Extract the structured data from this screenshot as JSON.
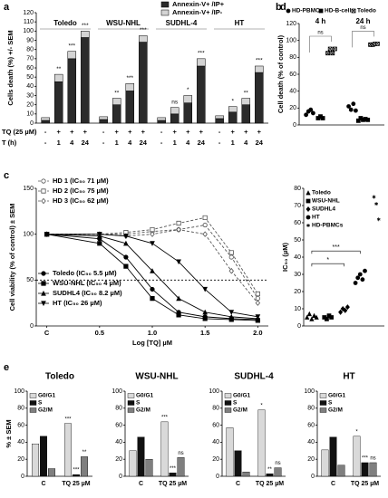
{
  "chart_data": [
    {
      "type": "stacked-bar",
      "panel_label": "a",
      "ylabel": "Cells death (%) +/- SEM",
      "ylim": [
        0,
        120
      ],
      "yticks": [
        0,
        10,
        20,
        30,
        40,
        50,
        60,
        70,
        80,
        90,
        100,
        110,
        120
      ],
      "groups": [
        "Toledo",
        "WSU-NHL",
        "SUDHL-4",
        "HT"
      ],
      "tq_label": "TQ (25 µM)",
      "t_label": "T (h)",
      "tq": [
        "-",
        "+",
        "+",
        "+",
        "-",
        "+",
        "+",
        "+",
        "-",
        "+",
        "+",
        "+",
        "-",
        "+",
        "+",
        "+"
      ],
      "t": [
        "-",
        "1",
        "4",
        "24",
        "-",
        "1",
        "4",
        "24",
        "-",
        "1",
        "4",
        "24",
        "-",
        "1",
        "4",
        "24"
      ],
      "series": [
        {
          "name": "Annexin-V+ /IP+",
          "color": "#2b2b2b",
          "values": [
            3,
            45,
            70,
            93,
            4,
            20,
            35,
            88,
            3,
            10,
            22,
            62,
            5,
            12,
            20,
            55
          ]
        },
        {
          "name": "Annexin-V+ /IP-",
          "color": "#d4d4d4",
          "values": [
            3,
            8,
            8,
            7,
            3,
            7,
            8,
            7,
            3,
            7,
            8,
            8,
            3,
            6,
            7,
            7
          ]
        }
      ],
      "significance": [
        null,
        "**",
        "***",
        "***",
        null,
        "**",
        "***",
        "***",
        null,
        "ns",
        "*",
        "***",
        null,
        "*",
        "**",
        "***"
      ]
    },
    {
      "type": "strip",
      "panel_label": "b",
      "ylabel": "Cell death (% of control)",
      "ylim": [
        0,
        120
      ],
      "yticks": [
        0,
        20,
        40,
        60,
        80,
        100,
        120
      ],
      "categories": [
        "4 h",
        "24 h"
      ],
      "significance": [
        "ns",
        "ns"
      ],
      "series": [
        {
          "name": "HD-PBMCs",
          "marker": "circle",
          "filled": true,
          "color": "#000000",
          "values": [
            [
              12,
              16,
              18,
              14
            ],
            [
              22,
              18,
              25,
              17
            ]
          ]
        },
        {
          "name": "HD-B-cells",
          "marker": "square",
          "filled": true,
          "color": "#000000",
          "values": [
            [
              8,
              10,
              8
            ],
            [
              5,
              8,
              6,
              7,
              6
            ]
          ]
        },
        {
          "name": "Toledo",
          "marker": "square-x",
          "filled": false,
          "color": "#000000",
          "values": [
            [
              85,
              90,
              85,
              90
            ],
            [
              95,
              95,
              96,
              96
            ]
          ]
        }
      ]
    },
    {
      "type": "line",
      "panel_label": "c",
      "ylabel": "Cell viability (% of control) ± SEM",
      "xlabel": "Log [TQ] µM",
      "ylim": [
        0,
        150
      ],
      "yticks": [
        0,
        50,
        100,
        150
      ],
      "hline": 50,
      "xlim": [
        -0.1,
        2.1
      ],
      "xticks": [
        {
          "value": 0,
          "label": "C"
        },
        0.5,
        {
          "value": 1,
          "label": "1.0"
        },
        1.5,
        {
          "value": 2,
          "label": "2.0"
        }
      ],
      "x": [
        0,
        0.5,
        0.75,
        1,
        1.25,
        1.5,
        1.75,
        2
      ],
      "series": [
        {
          "name": "HD 1 (IC₅₀ 71 µM)",
          "marker": "circle",
          "filled": false,
          "line_style": "dashed",
          "color": "#555555",
          "values": [
            100,
            100,
            100,
            103,
            105,
            110,
            75,
            30
          ]
        },
        {
          "name": "HD 2 (IC₅₀ 75 µM)",
          "marker": "square",
          "filled": false,
          "line_style": "dashed",
          "color": "#555555",
          "values": [
            100,
            100,
            102,
            105,
            112,
            118,
            80,
            35
          ]
        },
        {
          "name": "HD 3 (IC₅₀ 62 µM)",
          "marker": "diamond",
          "filled": false,
          "line_style": "dashed",
          "color": "#555555",
          "values": [
            100,
            100,
            98,
            100,
            105,
            100,
            60,
            25
          ]
        },
        {
          "name": "Toledo (IC₅₀ 5.5 µM)",
          "marker": "circle",
          "filled": true,
          "line_style": "solid",
          "color": "#000000",
          "values": [
            100,
            95,
            75,
            40,
            15,
            10,
            8,
            7
          ]
        },
        {
          "name": "WSU-NHL (IC₅₀ 4 µM)",
          "marker": "square",
          "filled": true,
          "line_style": "solid",
          "color": "#000000",
          "values": [
            100,
            90,
            65,
            30,
            12,
            8,
            7,
            6
          ]
        },
        {
          "name": "SUDHL4 (IC₅₀ 8.2 µM)",
          "marker": "triangle",
          "filled": true,
          "line_style": "solid",
          "color": "#000000",
          "values": [
            100,
            98,
            90,
            60,
            30,
            15,
            10,
            8
          ]
        },
        {
          "name": "HT (IC₅₀ 26 µM)",
          "marker": "triangle-down",
          "filled": true,
          "line_style": "solid",
          "color": "#000000",
          "values": [
            100,
            100,
            98,
            90,
            70,
            40,
            15,
            10
          ]
        }
      ]
    },
    {
      "type": "strip",
      "panel_label": "d",
      "ylabel": "IC₅₀ (µM)",
      "ylim": [
        0,
        80
      ],
      "yticks": [
        0,
        10,
        20,
        30,
        40,
        50,
        60,
        70,
        80
      ],
      "comparisons": [
        "***",
        "*"
      ],
      "series": [
        {
          "name": "Toledo",
          "marker": "triangle",
          "filled": true,
          "color": "#000000",
          "values": [
            5,
            7,
            4,
            6,
            5
          ]
        },
        {
          "name": "WSU-NHL",
          "marker": "square",
          "filled": true,
          "color": "#000000",
          "values": [
            5,
            4,
            6,
            5
          ]
        },
        {
          "name": "SUDHL4",
          "marker": "diamond",
          "filled": true,
          "color": "#000000",
          "values": [
            8,
            10,
            9,
            11
          ]
        },
        {
          "name": "HT",
          "marker": "circle",
          "filled": true,
          "color": "#000000",
          "values": [
            25,
            28,
            30,
            27,
            32
          ]
        },
        {
          "name": "HD-PBMCs",
          "marker": "star",
          "filled": false,
          "color": "#000000",
          "values": [
            75,
            71,
            62
          ]
        }
      ]
    },
    {
      "type": "grouped-bar",
      "panel_label": "e",
      "title": "Toledo",
      "ylabel": "% ± SEM",
      "ylim": [
        0,
        100
      ],
      "yticks": [
        0,
        20,
        40,
        60,
        80,
        100
      ],
      "categories": [
        "C",
        "TQ 25 µM"
      ],
      "series": [
        {
          "name": "G0/G1",
          "color": "#d9d9d9",
          "values": [
            38,
            62
          ],
          "significance": [
            null,
            "***"
          ]
        },
        {
          "name": "S",
          "color": "#111111",
          "values": [
            47,
            2
          ],
          "significance": [
            null,
            "***"
          ]
        },
        {
          "name": "G2/M",
          "color": "#7f7f7f",
          "values": [
            9,
            23
          ],
          "significance": [
            null,
            "**"
          ]
        }
      ]
    },
    {
      "type": "grouped-bar",
      "title": "WSU-NHL",
      "ylim": [
        0,
        100
      ],
      "yticks": [
        0,
        20,
        40,
        60,
        80,
        100
      ],
      "categories": [
        "C",
        "TQ 25 µM"
      ],
      "series": [
        {
          "name": "G0/G1",
          "color": "#d9d9d9",
          "values": [
            30,
            64
          ],
          "significance": [
            null,
            "***"
          ]
        },
        {
          "name": "S",
          "color": "#111111",
          "values": [
            46,
            4
          ],
          "significance": [
            null,
            "***"
          ]
        },
        {
          "name": "G2/M",
          "color": "#7f7f7f",
          "values": [
            20,
            22
          ],
          "significance": [
            null,
            "ns"
          ]
        }
      ]
    },
    {
      "type": "grouped-bar",
      "title": "SUDHL-4",
      "ylim": [
        0,
        100
      ],
      "yticks": [
        0,
        20,
        40,
        60,
        80,
        100
      ],
      "categories": [
        "C",
        "TQ 25 µM"
      ],
      "series": [
        {
          "name": "G0/G1",
          "color": "#d9d9d9",
          "values": [
            57,
            78
          ],
          "significance": [
            null,
            "*"
          ]
        },
        {
          "name": "S",
          "color": "#111111",
          "values": [
            30,
            3
          ],
          "significance": [
            null,
            "**"
          ]
        },
        {
          "name": "G2/M",
          "color": "#7f7f7f",
          "values": [
            5,
            10
          ],
          "significance": [
            null,
            "ns"
          ]
        }
      ]
    },
    {
      "type": "grouped-bar",
      "title": "HT",
      "ylim": [
        0,
        100
      ],
      "yticks": [
        0,
        20,
        40,
        60,
        80,
        100
      ],
      "categories": [
        "C",
        "TQ 25 µM"
      ],
      "series": [
        {
          "name": "G0/G1",
          "color": "#d9d9d9",
          "values": [
            31,
            47
          ],
          "significance": [
            null,
            "*"
          ]
        },
        {
          "name": "S",
          "color": "#111111",
          "values": [
            46,
            16
          ],
          "significance": [
            null,
            "***"
          ]
        },
        {
          "name": "G2/M",
          "color": "#7f7f7f",
          "values": [
            13,
            16
          ],
          "significance": [
            null,
            "ns"
          ]
        }
      ]
    }
  ]
}
